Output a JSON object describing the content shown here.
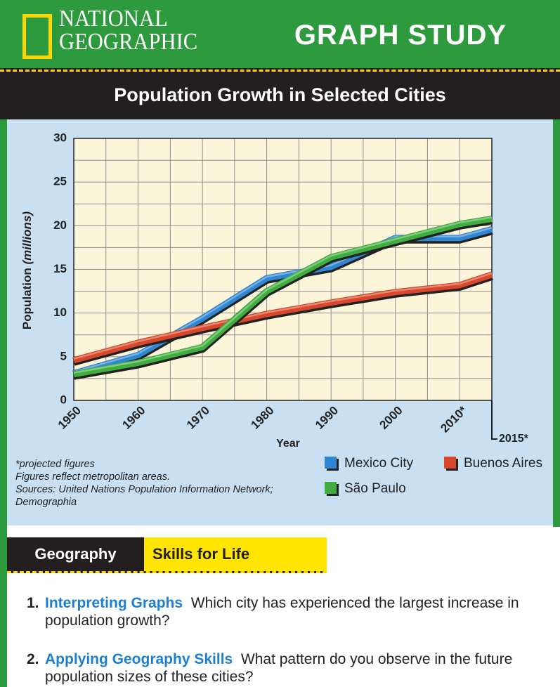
{
  "header": {
    "brand_line1": "NATIONAL",
    "brand_line2": "GEOGRAPHIC",
    "section": "GRAPH STUDY"
  },
  "chart_data": {
    "type": "line",
    "title": "Population Growth in Selected Cities",
    "x_label": "Year",
    "y_label": "Population",
    "y_label_unit": "(millions)",
    "x": [
      1950,
      1960,
      1970,
      1980,
      1990,
      2000,
      2010,
      2015
    ],
    "series": [
      {
        "name": "Mexico City",
        "color": "#2f86d2",
        "values": [
          3.1,
          5.2,
          9.4,
          14.0,
          15.3,
          18.6,
          18.6,
          19.6
        ]
      },
      {
        "name": "Buenos Aires",
        "color": "#d8472b",
        "values": [
          4.6,
          6.6,
          8.3,
          9.9,
          11.2,
          12.4,
          13.2,
          14.4
        ]
      },
      {
        "name": "São Paulo",
        "color": "#3fae3f",
        "values": [
          3.0,
          4.3,
          6.1,
          12.5,
          16.4,
          18.3,
          20.2,
          20.8
        ]
      }
    ],
    "xlim": [
      1950,
      2015
    ],
    "xticks": [
      1950,
      1960,
      1970,
      1980,
      1990,
      2000,
      {
        "value": 2010,
        "label": "2010*"
      },
      {
        "value": 2015,
        "label": "2015*"
      }
    ],
    "ylim": [
      0,
      30
    ],
    "yticks": [
      0,
      5,
      10,
      15,
      20,
      25,
      30
    ],
    "grid": true
  },
  "notes": [
    "*projected figures",
    "Figures reflect metropolitan areas.",
    "Sources: United Nations Population Information Network; Demographia"
  ],
  "skills": {
    "tag": "Geography",
    "title": "Skills for Life"
  },
  "questions": [
    {
      "number": "1.",
      "heading": "Interpreting Graphs",
      "text": "Which city has experienced the largest increase in population growth?"
    },
    {
      "number": "2.",
      "heading": "Applying Geography Skills",
      "text": "What pattern do you observe in the future population sizes of these cities?"
    }
  ]
}
